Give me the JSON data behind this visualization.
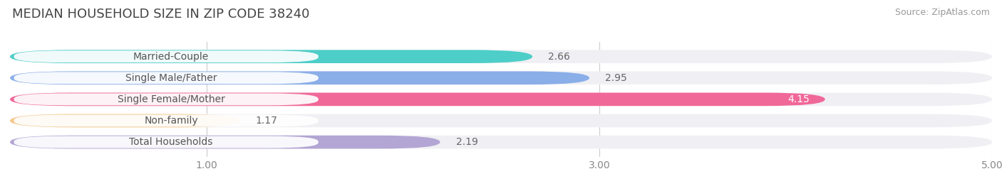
{
  "title": "MEDIAN HOUSEHOLD SIZE IN ZIP CODE 38240",
  "source": "Source: ZipAtlas.com",
  "categories": [
    "Married-Couple",
    "Single Male/Father",
    "Single Female/Mother",
    "Non-family",
    "Total Households"
  ],
  "values": [
    2.66,
    2.95,
    4.15,
    1.17,
    2.19
  ],
  "bar_colors": [
    "#4ecec8",
    "#8aaee8",
    "#f06898",
    "#f5c98a",
    "#b3a5d4"
  ],
  "bar_bg_color": "#f0f0f4",
  "xmin": 0.0,
  "xmax": 5.0,
  "xticks": [
    1.0,
    3.0,
    5.0
  ],
  "xticklabels": [
    "1.00",
    "3.00",
    "5.00"
  ],
  "label_inside_color": "#ffffff",
  "label_outside_color": "#666666",
  "label_inside_threshold": 3.5,
  "title_fontsize": 13,
  "source_fontsize": 9,
  "tick_fontsize": 10,
  "bar_label_fontsize": 10,
  "category_fontsize": 10,
  "background_color": "#ffffff",
  "grid_color": "#cccccc",
  "cat_label_color": "#555555",
  "cat_label_bg": "#ffffff"
}
